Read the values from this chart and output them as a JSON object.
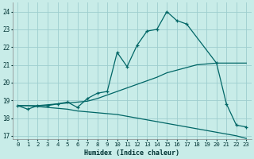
{
  "xlabel": "Humidex (Indice chaleur)",
  "bg_color": "#c8ece8",
  "grid_color": "#9ecece",
  "line_color": "#006666",
  "xlim": [
    -0.5,
    23.5
  ],
  "ylim": [
    16.8,
    24.5
  ],
  "xticks": [
    0,
    1,
    2,
    3,
    4,
    5,
    6,
    7,
    8,
    9,
    10,
    11,
    12,
    13,
    14,
    15,
    16,
    17,
    18,
    19,
    20,
    21,
    22,
    23
  ],
  "yticks": [
    17,
    18,
    19,
    20,
    21,
    22,
    23,
    24
  ],
  "line1_x": [
    0,
    1,
    2,
    3,
    4,
    5,
    6,
    7,
    8,
    9,
    10,
    11,
    12,
    13,
    14,
    15,
    16,
    17,
    20,
    21,
    22,
    23
  ],
  "line1_y": [
    18.7,
    18.5,
    18.7,
    18.7,
    18.8,
    18.9,
    18.6,
    19.1,
    19.4,
    19.5,
    21.7,
    20.9,
    22.1,
    22.9,
    23.0,
    24.0,
    23.5,
    23.3,
    21.1,
    18.8,
    17.6,
    17.5
  ],
  "line2_x": [
    0,
    1,
    2,
    3,
    4,
    5,
    6,
    7,
    8,
    9,
    10,
    11,
    12,
    13,
    14,
    15,
    16,
    17,
    18,
    19,
    20,
    21,
    22,
    23
  ],
  "line2_y": [
    18.7,
    18.7,
    18.7,
    18.75,
    18.8,
    18.85,
    18.9,
    18.95,
    19.1,
    19.3,
    19.5,
    19.7,
    19.9,
    20.1,
    20.3,
    20.55,
    20.7,
    20.85,
    21.0,
    21.05,
    21.1,
    21.1,
    21.1,
    21.1
  ],
  "line3_x": [
    0,
    1,
    2,
    3,
    4,
    5,
    6,
    7,
    8,
    9,
    10,
    11,
    12,
    13,
    14,
    15,
    16,
    17,
    18,
    19,
    20,
    21,
    22,
    23
  ],
  "line3_y": [
    18.7,
    18.7,
    18.65,
    18.6,
    18.55,
    18.5,
    18.4,
    18.35,
    18.3,
    18.25,
    18.2,
    18.1,
    18.0,
    17.9,
    17.8,
    17.7,
    17.6,
    17.5,
    17.4,
    17.3,
    17.2,
    17.1,
    17.0,
    16.85
  ]
}
